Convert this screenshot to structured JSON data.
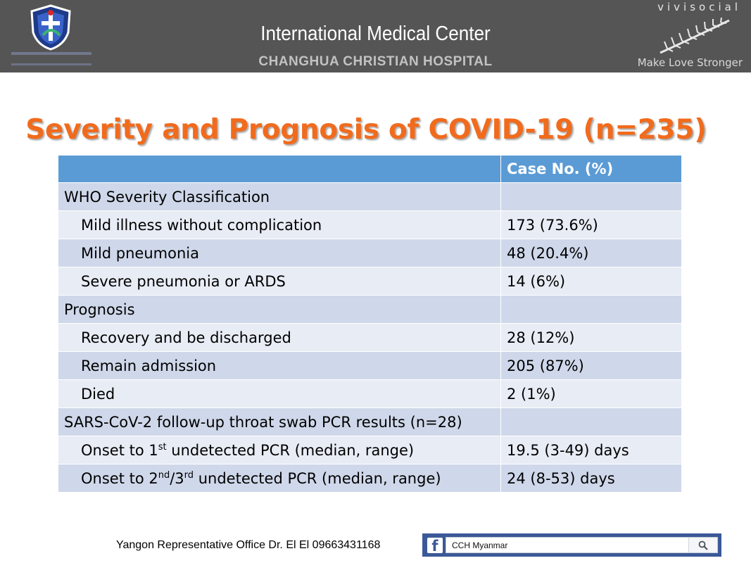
{
  "header": {
    "title": "International Medical Center",
    "subtitle": "CHANGHUA CHRISTIAN HOSPITAL",
    "brand": "vivisocial",
    "tagline": "Make Love Stronger",
    "logo_icon": "hospital-shield-logo",
    "brand_icon": "silver-fern-icon",
    "header_bg": "#555555"
  },
  "slide": {
    "title": "Severity and Prognosis of COVID-19 (n=235)",
    "title_color": "#f16b1d"
  },
  "table": {
    "header": {
      "col1": "",
      "col2": "Case No. (%)"
    },
    "rows": [
      {
        "label": "WHO Severity Classification",
        "value": "",
        "indent": false
      },
      {
        "label": "Mild illness without complication",
        "value": "173 (73.6%)",
        "indent": true
      },
      {
        "label": "Mild pneumonia",
        "value": "48 (20.4%)",
        "indent": true
      },
      {
        "label": "Severe pneumonia or ARDS",
        "value": "14 (6%)",
        "indent": true
      },
      {
        "label": "Prognosis",
        "value": "",
        "indent": false
      },
      {
        "label": "Recovery and be discharged",
        "value": "28 (12%)",
        "indent": true
      },
      {
        "label": "Remain admission",
        "value": "205 (87%)",
        "indent": true
      },
      {
        "label": "Died",
        "value": "2 (1%)",
        "indent": true
      },
      {
        "label": "SARS-CoV-2 follow-up throat swab PCR results (n=28)",
        "value": "",
        "indent": false
      },
      {
        "label_pre": "Onset to 1",
        "label_sup": "st",
        "label_post": " undetected PCR (median, range)",
        "value": "19.5 (3-49) days",
        "indent": true
      },
      {
        "label_pre": "Onset to 2",
        "label_sup": "nd",
        "label_mid": "/3",
        "label_sup2": "rd",
        "label_post": " undetected PCR (median, range)",
        "value": "24 (8-53) days",
        "indent": true
      }
    ],
    "header_color": "#5b9bd5",
    "row_color_odd": "#cfd8ea",
    "row_color_even": "#e8ecf5"
  },
  "footer": {
    "contact": "Yangon Representative Office Dr. El El 09663431168",
    "facebook_search": "CCH Myanmar",
    "facebook_icon": "facebook-icon",
    "search_icon": "search-icon",
    "facebook_color": "#3b5998"
  }
}
